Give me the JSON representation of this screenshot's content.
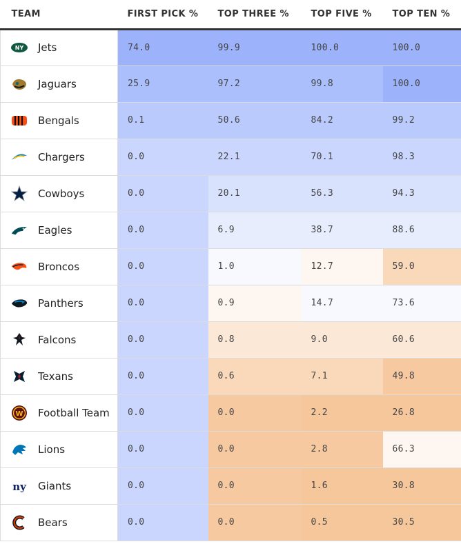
{
  "chart_data": {
    "type": "table",
    "columns": [
      "TEAM",
      "FIRST PICK %",
      "TOP THREE %",
      "TOP FIVE %",
      "TOP TEN %"
    ],
    "rows": [
      {
        "team": "Jets",
        "logo": "jets-logo-icon",
        "values": [
          "74.0",
          "99.9",
          "100.0",
          "100.0"
        ]
      },
      {
        "team": "Jaguars",
        "logo": "jaguars-logo-icon",
        "values": [
          "25.9",
          "97.2",
          "99.8",
          "100.0"
        ]
      },
      {
        "team": "Bengals",
        "logo": "bengals-logo-icon",
        "values": [
          "0.1",
          "50.6",
          "84.2",
          "99.2"
        ]
      },
      {
        "team": "Chargers",
        "logo": "chargers-logo-icon",
        "values": [
          "0.0",
          "22.1",
          "70.1",
          "98.3"
        ]
      },
      {
        "team": "Cowboys",
        "logo": "cowboys-logo-icon",
        "values": [
          "0.0",
          "20.1",
          "56.3",
          "94.3"
        ]
      },
      {
        "team": "Eagles",
        "logo": "eagles-logo-icon",
        "values": [
          "0.0",
          "6.9",
          "38.7",
          "88.6"
        ]
      },
      {
        "team": "Broncos",
        "logo": "broncos-logo-icon",
        "values": [
          "0.0",
          "1.0",
          "12.7",
          "59.0"
        ]
      },
      {
        "team": "Panthers",
        "logo": "panthers-logo-icon",
        "values": [
          "0.0",
          "0.9",
          "14.7",
          "73.6"
        ]
      },
      {
        "team": "Falcons",
        "logo": "falcons-logo-icon",
        "values": [
          "0.0",
          "0.8",
          "9.0",
          "60.6"
        ]
      },
      {
        "team": "Texans",
        "logo": "texans-logo-icon",
        "values": [
          "0.0",
          "0.6",
          "7.1",
          "49.8"
        ]
      },
      {
        "team": "Football Team",
        "logo": "football-team-logo-icon",
        "values": [
          "0.0",
          "0.0",
          "2.2",
          "26.8"
        ]
      },
      {
        "team": "Lions",
        "logo": "lions-logo-icon",
        "values": [
          "0.0",
          "0.0",
          "2.8",
          "66.3"
        ]
      },
      {
        "team": "Giants",
        "logo": "giants-logo-icon",
        "values": [
          "0.0",
          "0.0",
          "1.6",
          "30.8"
        ]
      },
      {
        "team": "Bears",
        "logo": "bears-logo-icon",
        "values": [
          "0.0",
          "0.0",
          "0.5",
          "30.5"
        ]
      }
    ],
    "color_scale": {
      "type": "diverging",
      "low_color": "#f7c79c",
      "mid_color": "#ffffff",
      "high_color": "#9cb3fb",
      "per_column_rank": true
    }
  }
}
